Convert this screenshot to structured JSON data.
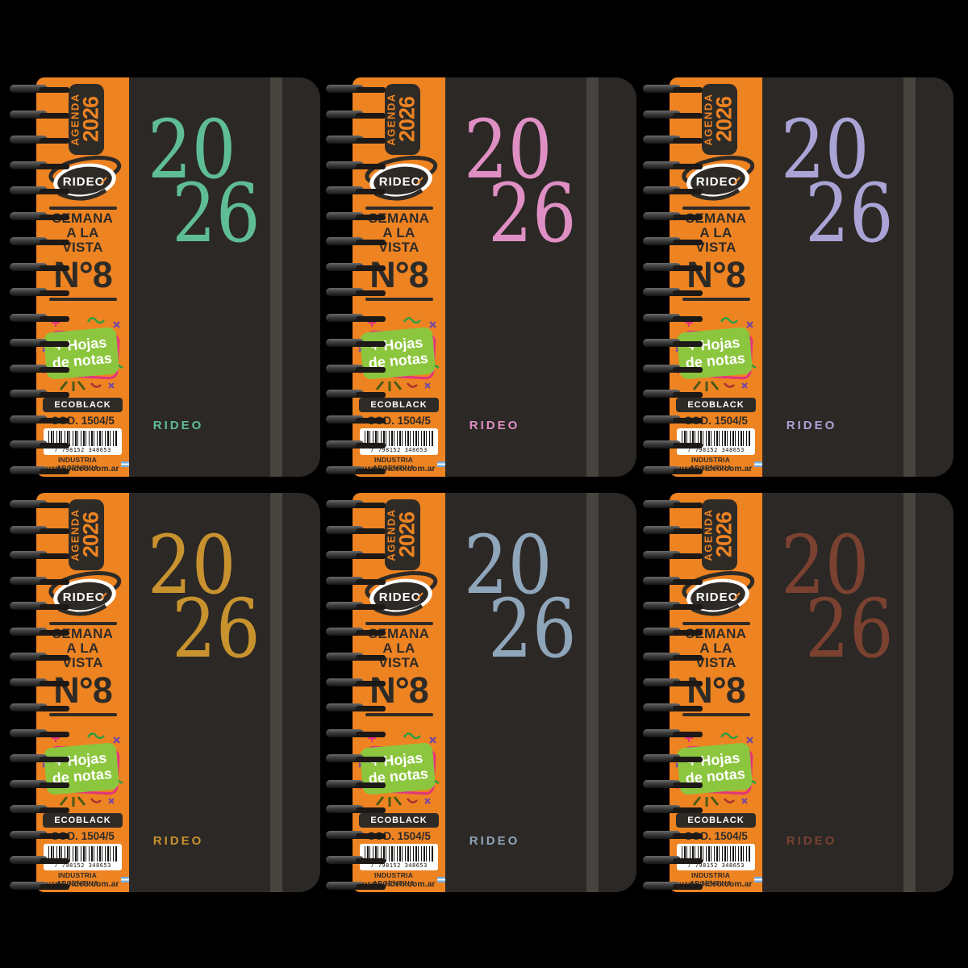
{
  "colors": {
    "background": "#000000",
    "cover": "#2b2825",
    "strip_orange": "#ee8322",
    "dark_print": "#2e2b27",
    "elastic_band": "#47433f",
    "sticker_green": "#8cc63e",
    "sticker_pink": "#e2357c",
    "sticker_purple": "#7048a8",
    "barcode_ink": "#161310"
  },
  "notebook": {
    "badge_line1": "AGENDA",
    "badge_line2": "2026",
    "brand_logo": "RIDEO",
    "week_line1": "SEMANA",
    "week_line2": "A LA",
    "week_line3": "VISTA",
    "model": "N°8",
    "sticker_line1": "+ Hojas",
    "sticker_line2": "de notas",
    "eco_label": "ECOBLACK",
    "code_label": "COD. 1504/5",
    "barcode_digits": "7 798152 348653",
    "industry_label": "INDUSTRIA ARGENTINA",
    "website": "www.rideo.com.ar",
    "year_line1": "20",
    "year_line2": "26",
    "brand_bottom": "RIDEO"
  },
  "variants": [
    {
      "name": "teal",
      "accent_color": "#5fbd95"
    },
    {
      "name": "pink",
      "accent_color": "#df8fc3"
    },
    {
      "name": "lavender",
      "accent_color": "#a9a4d5"
    },
    {
      "name": "gold",
      "accent_color": "#c8922f"
    },
    {
      "name": "slate-blue",
      "accent_color": "#8fa5ba"
    },
    {
      "name": "rust-brown",
      "accent_color": "#7a4130"
    }
  ]
}
